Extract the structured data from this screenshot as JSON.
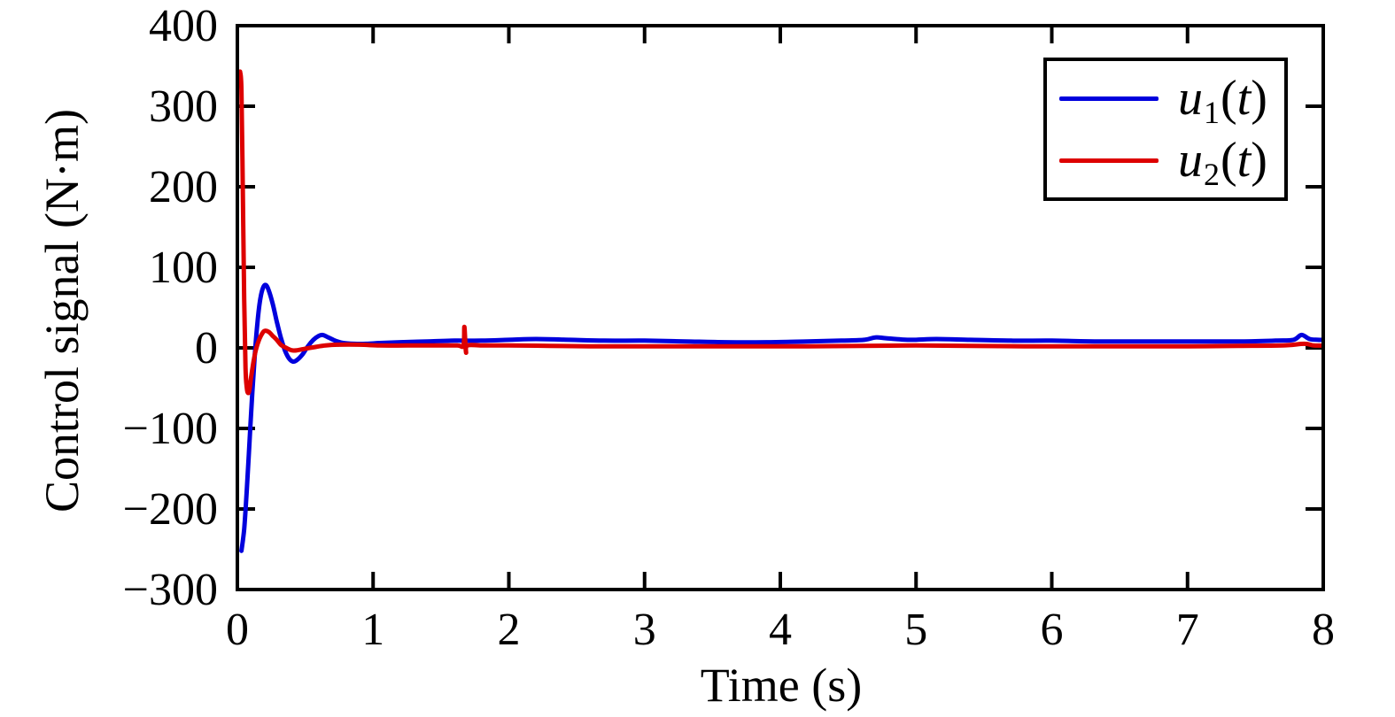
{
  "figure": {
    "background": "#ffffff",
    "axis_color": "#000000"
  },
  "chart_data": {
    "type": "line",
    "title": "",
    "xlabel": "Time (s)",
    "ylabel": "Control signal (N·m)",
    "xlim": [
      0,
      8
    ],
    "ylim": [
      -300,
      400
    ],
    "xticks": [
      0,
      1,
      2,
      3,
      4,
      5,
      6,
      7,
      8
    ],
    "xtick_labels": [
      "0",
      "1",
      "2",
      "3",
      "4",
      "5",
      "6",
      "7",
      "8"
    ],
    "yticks": [
      400,
      300,
      200,
      100,
      0,
      -100,
      -200,
      -300
    ],
    "ytick_labels": [
      "400",
      "300",
      "200",
      "100",
      "0",
      "−100",
      "−200",
      "−300"
    ],
    "grid": false,
    "box": true,
    "ticks_mirrored": true,
    "legend_position": "top-right",
    "series": [
      {
        "name": "u1(t)",
        "color": "#0000DD",
        "points": [
          [
            0.03,
            -252
          ],
          [
            0.05,
            -225
          ],
          [
            0.07,
            -175
          ],
          [
            0.09,
            -115
          ],
          [
            0.11,
            -55
          ],
          [
            0.13,
            -5
          ],
          [
            0.15,
            35
          ],
          [
            0.17,
            62
          ],
          [
            0.19,
            75
          ],
          [
            0.21,
            78
          ],
          [
            0.23,
            72
          ],
          [
            0.26,
            55
          ],
          [
            0.29,
            33
          ],
          [
            0.32,
            13
          ],
          [
            0.35,
            -3
          ],
          [
            0.38,
            -13
          ],
          [
            0.41,
            -17
          ],
          [
            0.44,
            -15
          ],
          [
            0.48,
            -8
          ],
          [
            0.52,
            2
          ],
          [
            0.56,
            10
          ],
          [
            0.6,
            15
          ],
          [
            0.63,
            16
          ],
          [
            0.67,
            13
          ],
          [
            0.72,
            9
          ],
          [
            0.78,
            6
          ],
          [
            0.86,
            5
          ],
          [
            0.95,
            5
          ],
          [
            1.05,
            6
          ],
          [
            1.2,
            7
          ],
          [
            1.4,
            8
          ],
          [
            1.6,
            9
          ],
          [
            1.8,
            9
          ],
          [
            2.0,
            10
          ],
          [
            2.2,
            11
          ],
          [
            2.45,
            10
          ],
          [
            2.7,
            9
          ],
          [
            3.0,
            9
          ],
          [
            3.3,
            8
          ],
          [
            3.6,
            7
          ],
          [
            3.9,
            7
          ],
          [
            4.2,
            8
          ],
          [
            4.45,
            9
          ],
          [
            4.62,
            10
          ],
          [
            4.7,
            13
          ],
          [
            4.78,
            12
          ],
          [
            4.95,
            10
          ],
          [
            5.15,
            11
          ],
          [
            5.4,
            10
          ],
          [
            5.7,
            9
          ],
          [
            6.0,
            9
          ],
          [
            6.35,
            8
          ],
          [
            6.7,
            8
          ],
          [
            7.05,
            8
          ],
          [
            7.4,
            8
          ],
          [
            7.65,
            9
          ],
          [
            7.78,
            10
          ],
          [
            7.84,
            16
          ],
          [
            7.9,
            11
          ],
          [
            7.96,
            10
          ],
          [
            8.0,
            10
          ]
        ]
      },
      {
        "name": "u2(t)",
        "color": "#DD0000",
        "points": [
          [
            0.02,
            343
          ],
          [
            0.03,
            320
          ],
          [
            0.04,
            200
          ],
          [
            0.05,
            60
          ],
          [
            0.06,
            -25
          ],
          [
            0.07,
            -50
          ],
          [
            0.08,
            -56
          ],
          [
            0.09,
            -51
          ],
          [
            0.1,
            -38
          ],
          [
            0.12,
            -16
          ],
          [
            0.14,
            0
          ],
          [
            0.16,
            10
          ],
          [
            0.18,
            17
          ],
          [
            0.2,
            21
          ],
          [
            0.23,
            20
          ],
          [
            0.26,
            15
          ],
          [
            0.29,
            10
          ],
          [
            0.32,
            4
          ],
          [
            0.36,
            0
          ],
          [
            0.4,
            -3
          ],
          [
            0.44,
            -3
          ],
          [
            0.5,
            -1
          ],
          [
            0.57,
            1
          ],
          [
            0.65,
            3
          ],
          [
            0.75,
            4
          ],
          [
            0.9,
            4
          ],
          [
            1.05,
            3
          ],
          [
            1.25,
            3
          ],
          [
            1.45,
            3
          ],
          [
            1.62,
            3
          ],
          [
            1.665,
            3
          ],
          [
            1.672,
            26
          ],
          [
            1.679,
            8
          ],
          [
            1.685,
            -6
          ],
          [
            1.695,
            3
          ],
          [
            1.8,
            3
          ],
          [
            2.0,
            3
          ],
          [
            2.3,
            2.5
          ],
          [
            2.6,
            2
          ],
          [
            3.0,
            2
          ],
          [
            3.4,
            2
          ],
          [
            3.8,
            2
          ],
          [
            4.2,
            2
          ],
          [
            4.6,
            2.5
          ],
          [
            5.0,
            3
          ],
          [
            5.4,
            2.5
          ],
          [
            5.8,
            2
          ],
          [
            6.2,
            2
          ],
          [
            6.6,
            2
          ],
          [
            7.0,
            2
          ],
          [
            7.4,
            2.5
          ],
          [
            7.7,
            3
          ],
          [
            7.86,
            5
          ],
          [
            7.93,
            3
          ],
          [
            8.0,
            3
          ]
        ]
      }
    ]
  },
  "legend": {
    "items": [
      {
        "label": "u1(t)",
        "symbol": "u",
        "subscript": "1",
        "open": "(",
        "arg": "t",
        "close": ")",
        "color": "#0000DD"
      },
      {
        "label": "u2(t)",
        "symbol": "u",
        "subscript": "2",
        "open": "(",
        "arg": "t",
        "close": ")",
        "color": "#DD0000"
      }
    ]
  }
}
